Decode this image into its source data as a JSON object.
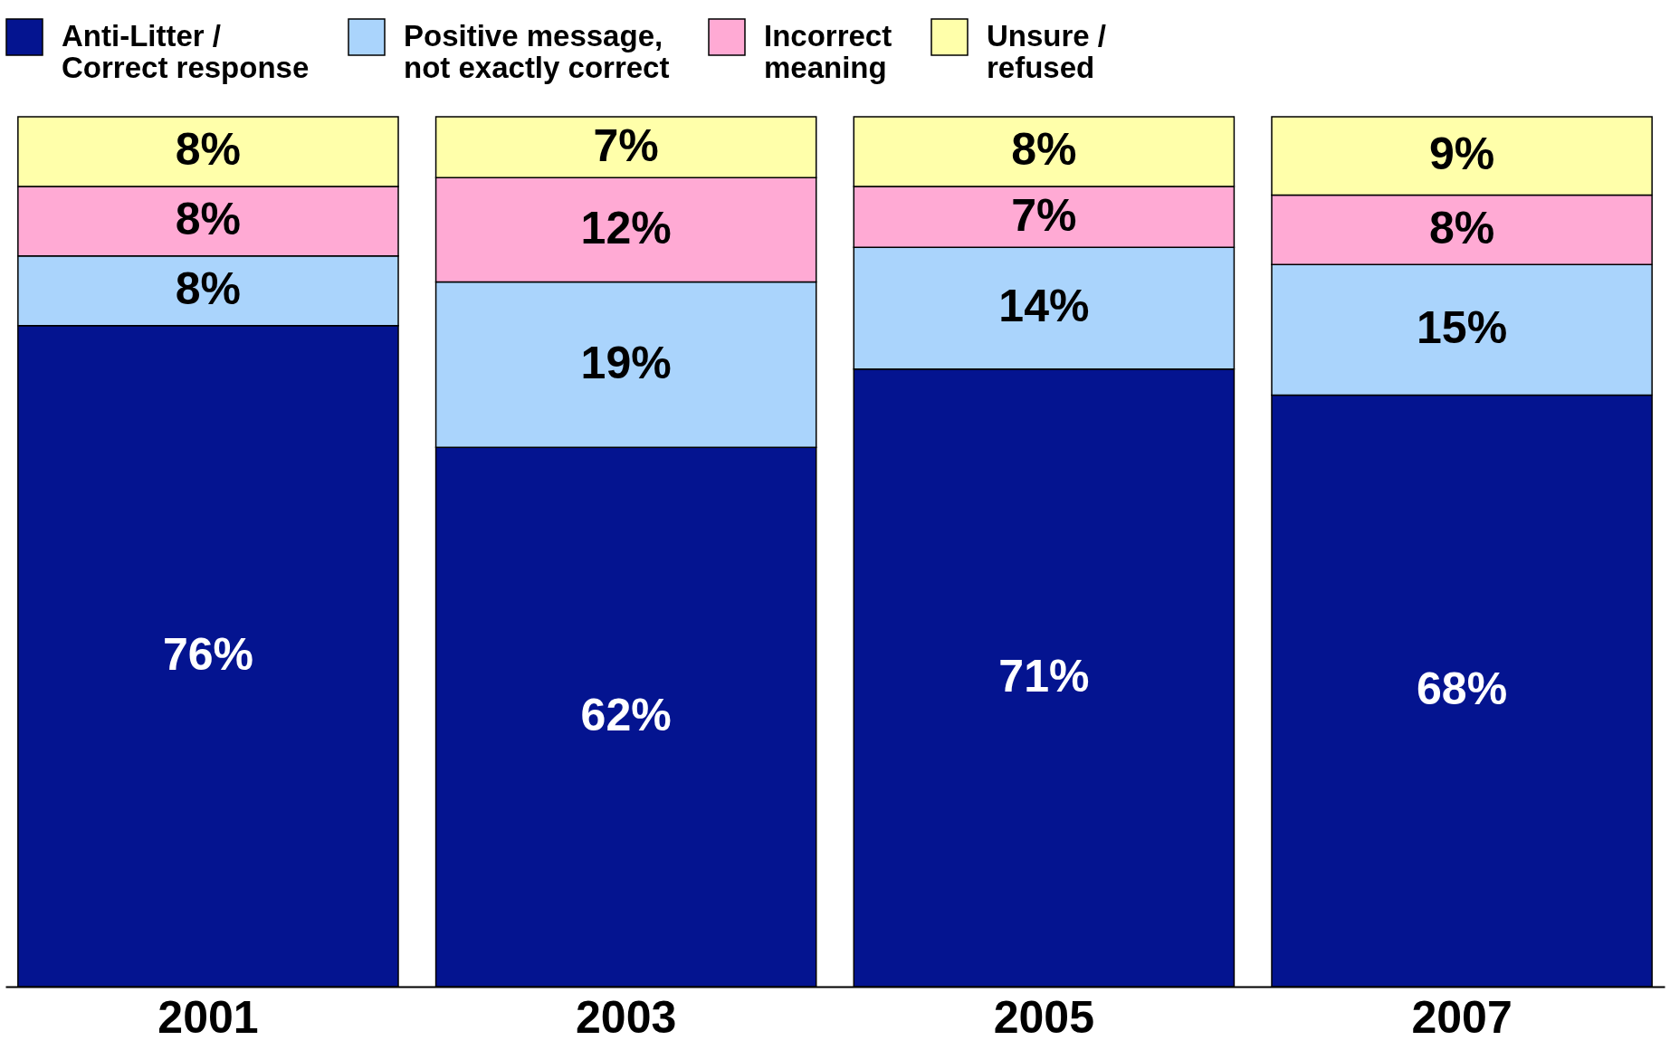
{
  "chart_data": {
    "type": "bar",
    "stacked": true,
    "legend": "top",
    "categories": [
      "2001",
      "2003",
      "2005",
      "2007"
    ],
    "series": [
      {
        "name": "Anti-Litter / Correct response",
        "color": "#041490",
        "values": [
          76,
          62,
          71,
          68
        ],
        "value_labels": [
          "76%",
          "62%",
          "71%",
          "68%"
        ]
      },
      {
        "name": "Positive message, not exactly correct",
        "color": "#aad4fc",
        "values": [
          8,
          19,
          14,
          15
        ],
        "value_labels": [
          "8%",
          "19%",
          "14%",
          "15%"
        ]
      },
      {
        "name": "Incorrect meaning",
        "color": "#ffaad4",
        "values": [
          8,
          12,
          7,
          8
        ],
        "value_labels": [
          "8%",
          "12%",
          "7%",
          "8%"
        ]
      },
      {
        "name": "Unsure / refused",
        "color": "#ffffaa",
        "values": [
          8,
          7,
          8,
          9
        ],
        "value_labels": [
          "8%",
          "7%",
          "8%",
          "9%"
        ]
      }
    ]
  }
}
